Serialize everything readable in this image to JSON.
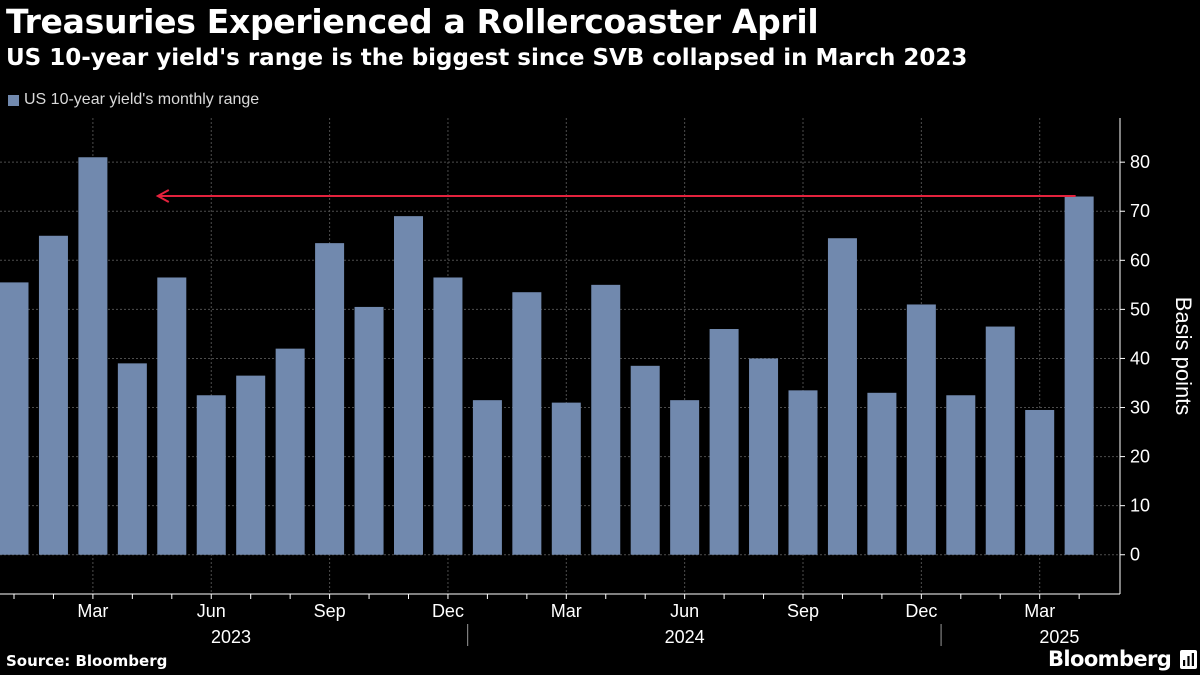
{
  "header": {
    "title": "Treasuries Experienced a Rollercoaster April",
    "subtitle": "US 10-year yield's range is the biggest since SVB collapsed in March 2023"
  },
  "footer": {
    "source": "Source: Bloomberg",
    "brand": "Bloomberg",
    "brand_icon": "bloomberg-chart-icon"
  },
  "colors": {
    "background": "#000000",
    "bar": "#7189ae",
    "grid": "#4d4d4d",
    "axis_text": "#ffffff",
    "annotation_arrow": "#e3223d"
  },
  "chart_data": {
    "type": "bar",
    "title": "Treasuries Experienced a Rollercoaster April",
    "subtitle": "US 10-year yield's range is the biggest since SVB collapsed in March 2023",
    "ylabel": "Basis points",
    "ylim": [
      -8,
      89
    ],
    "yticks": [
      0,
      10,
      20,
      30,
      40,
      50,
      60,
      70,
      80
    ],
    "y_axis_side": "right",
    "grid": true,
    "legend": {
      "position": "top-left",
      "entries": [
        "US 10-year yield's monthly range"
      ]
    },
    "series": [
      {
        "name": "US 10-year yield's monthly range",
        "values": [
          55.5,
          65,
          81,
          39,
          56.5,
          32.5,
          36.5,
          42,
          63.5,
          50.5,
          69,
          56.5,
          31.5,
          53.5,
          31,
          55,
          38.5,
          31.5,
          46,
          40,
          33.5,
          64.5,
          33,
          51,
          32.5,
          46.5,
          29.5,
          73
        ]
      }
    ],
    "categories": [
      "2023-01",
      "2023-02",
      "2023-03",
      "2023-04",
      "2023-05",
      "2023-06",
      "2023-07",
      "2023-08",
      "2023-09",
      "2023-10",
      "2023-11",
      "2023-12",
      "2024-01",
      "2024-02",
      "2024-03",
      "2024-04",
      "2024-05",
      "2024-06",
      "2024-07",
      "2024-08",
      "2024-09",
      "2024-10",
      "2024-11",
      "2024-12",
      "2025-01",
      "2025-02",
      "2025-03",
      "2025-04"
    ],
    "month_ticks": [
      {
        "index": 2,
        "label": "Mar"
      },
      {
        "index": 5,
        "label": "Jun"
      },
      {
        "index": 8,
        "label": "Sep"
      },
      {
        "index": 11,
        "label": "Dec"
      },
      {
        "index": 14,
        "label": "Mar"
      },
      {
        "index": 17,
        "label": "Jun"
      },
      {
        "index": 20,
        "label": "Sep"
      },
      {
        "index": 23,
        "label": "Dec"
      },
      {
        "index": 26,
        "label": "Mar"
      }
    ],
    "year_labels": [
      {
        "index": 5.5,
        "label": "2023"
      },
      {
        "index": 17,
        "label": "2024"
      },
      {
        "index": 26.5,
        "label": "2025"
      }
    ],
    "year_separators": [
      11.5,
      23.5
    ],
    "annotation": {
      "type": "arrow",
      "from_index": 27,
      "to_index": 4,
      "y": 73
    }
  }
}
